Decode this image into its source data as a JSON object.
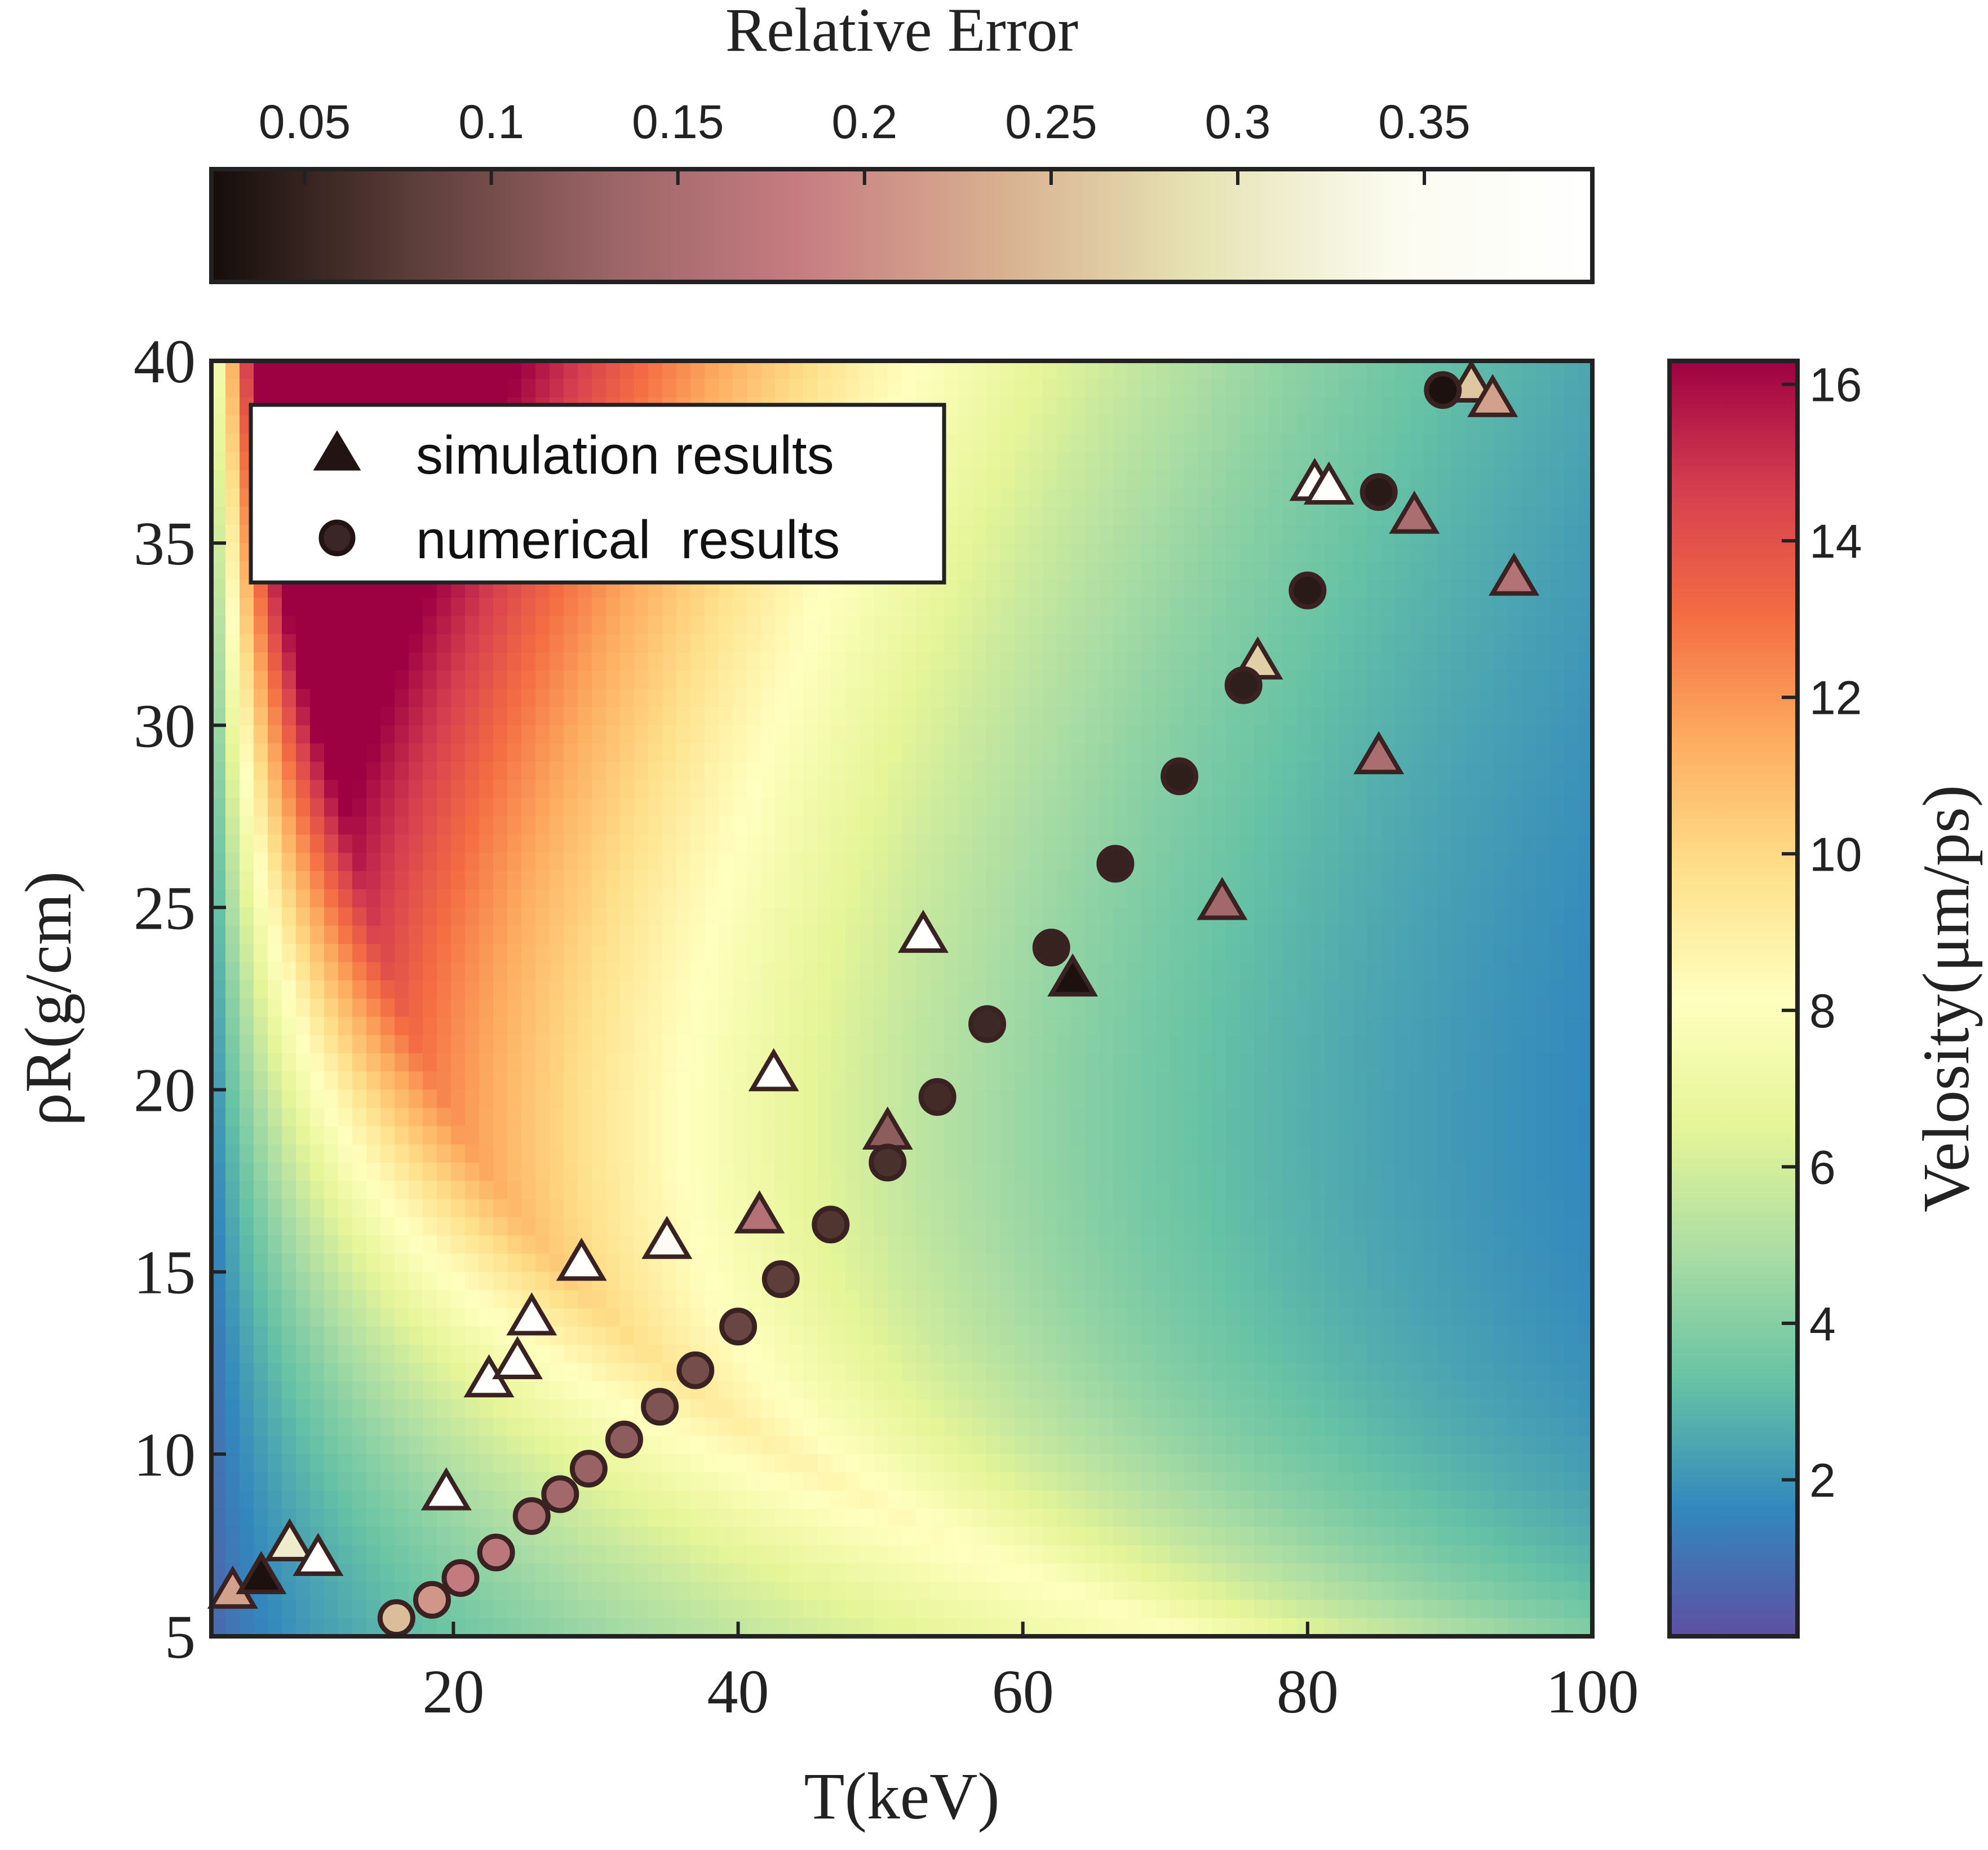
{
  "chart_data": {
    "type": "heatmap",
    "xlabel": "T(keV)",
    "ylabel": "ρR(g/cm)",
    "xlim": [
      3,
      100
    ],
    "ylim": [
      5,
      40
    ],
    "x_ticks": [
      20,
      40,
      60,
      80,
      100
    ],
    "y_ticks": [
      5,
      10,
      15,
      20,
      25,
      30,
      35,
      40
    ],
    "grid": false,
    "heatmap": {
      "colorbar_label": "Velosity(μm/ps)",
      "colorbar_range": [
        0,
        16.3
      ],
      "colorbar_ticks": [
        2,
        4,
        6,
        8,
        10,
        12,
        14,
        16
      ],
      "colormap": [
        "#5e4fa2",
        "#3288bd",
        "#66c2a5",
        "#abdda4",
        "#e6f598",
        "#ffffbf",
        "#fee08b",
        "#fdae61",
        "#f46d43",
        "#d53e4f",
        "#9e0142"
      ]
    },
    "marker_colorbar": {
      "label": "Relative Error",
      "range": [
        0.025,
        0.395
      ],
      "ticks": [
        0.05,
        0.1,
        0.15,
        0.2,
        0.25,
        0.3,
        0.35
      ],
      "tick_labels": [
        "0.05",
        "0.1",
        "0.15",
        "0.2",
        "0.25",
        "0.3",
        "0.35"
      ],
      "colormap": [
        "#150d0a",
        "#5a3c38",
        "#9a6466",
        "#c77d82",
        "#d8b090",
        "#e6e3b4",
        "#fbfbf0",
        "#ffffff"
      ],
      "placement": "top"
    },
    "legend": {
      "placement": "top-left",
      "entries": [
        "simulation results",
        "numerical  results"
      ]
    },
    "series": [
      {
        "name": "simulation results",
        "marker": "triangle",
        "points": [
          {
            "x": 4.5,
            "y": 6.2,
            "err": 0.22
          },
          {
            "x": 6.5,
            "y": 6.6,
            "err": 0.03
          },
          {
            "x": 8.5,
            "y": 7.5,
            "err": 0.31
          },
          {
            "x": 10.5,
            "y": 7.1,
            "err": 0.39
          },
          {
            "x": 19.5,
            "y": 8.9,
            "err": 0.39
          },
          {
            "x": 22.5,
            "y": 12.0,
            "err": 0.39
          },
          {
            "x": 24.5,
            "y": 12.5,
            "err": 0.39
          },
          {
            "x": 25.5,
            "y": 13.7,
            "err": 0.39
          },
          {
            "x": 29.0,
            "y": 15.2,
            "err": 0.39
          },
          {
            "x": 35.0,
            "y": 15.8,
            "err": 0.36
          },
          {
            "x": 41.5,
            "y": 16.5,
            "err": 0.16
          },
          {
            "x": 42.5,
            "y": 20.4,
            "err": 0.39
          },
          {
            "x": 50.5,
            "y": 18.8,
            "err": 0.12
          },
          {
            "x": 53.0,
            "y": 24.2,
            "err": 0.39
          },
          {
            "x": 63.5,
            "y": 23.0,
            "err": 0.03
          },
          {
            "x": 74.0,
            "y": 25.1,
            "err": 0.14
          },
          {
            "x": 76.5,
            "y": 31.7,
            "err": 0.27
          },
          {
            "x": 80.5,
            "y": 36.6,
            "err": 0.38
          },
          {
            "x": 81.5,
            "y": 36.5,
            "err": 0.38
          },
          {
            "x": 85.0,
            "y": 29.1,
            "err": 0.15
          },
          {
            "x": 87.5,
            "y": 35.7,
            "err": 0.15
          },
          {
            "x": 91.5,
            "y": 39.3,
            "err": 0.26
          },
          {
            "x": 93.0,
            "y": 38.9,
            "err": 0.22
          },
          {
            "x": 94.5,
            "y": 34.0,
            "err": 0.16
          }
        ]
      },
      {
        "name": "numerical  results",
        "marker": "circle",
        "points": [
          {
            "x": 16.0,
            "y": 5.5,
            "err": 0.25
          },
          {
            "x": 18.5,
            "y": 6.0,
            "err": 0.21
          },
          {
            "x": 20.5,
            "y": 6.6,
            "err": 0.18
          },
          {
            "x": 23.0,
            "y": 7.3,
            "err": 0.17
          },
          {
            "x": 25.5,
            "y": 8.3,
            "err": 0.15
          },
          {
            "x": 27.5,
            "y": 8.9,
            "err": 0.14
          },
          {
            "x": 29.5,
            "y": 9.6,
            "err": 0.13
          },
          {
            "x": 32.0,
            "y": 10.4,
            "err": 0.12
          },
          {
            "x": 34.5,
            "y": 11.3,
            "err": 0.11
          },
          {
            "x": 37.0,
            "y": 12.3,
            "err": 0.1
          },
          {
            "x": 40.0,
            "y": 13.5,
            "err": 0.09
          },
          {
            "x": 43.0,
            "y": 14.8,
            "err": 0.08
          },
          {
            "x": 46.5,
            "y": 16.3,
            "err": 0.07
          },
          {
            "x": 50.5,
            "y": 18.0,
            "err": 0.065
          },
          {
            "x": 54.0,
            "y": 19.8,
            "err": 0.06
          },
          {
            "x": 57.5,
            "y": 21.8,
            "err": 0.055
          },
          {
            "x": 62.0,
            "y": 23.9,
            "err": 0.05
          },
          {
            "x": 66.5,
            "y": 26.2,
            "err": 0.05
          },
          {
            "x": 71.0,
            "y": 28.6,
            "err": 0.045
          },
          {
            "x": 75.5,
            "y": 31.1,
            "err": 0.045
          },
          {
            "x": 80.0,
            "y": 33.7,
            "err": 0.04
          },
          {
            "x": 85.0,
            "y": 36.4,
            "err": 0.04
          },
          {
            "x": 89.5,
            "y": 39.2,
            "err": 0.03
          }
        ]
      }
    ]
  }
}
